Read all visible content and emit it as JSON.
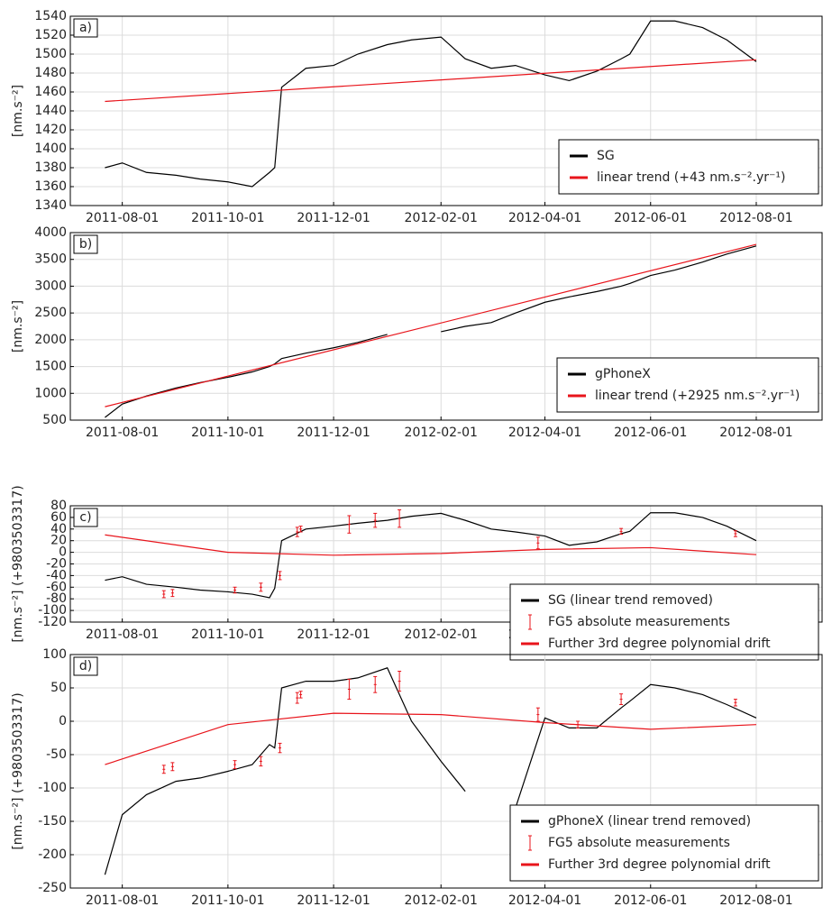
{
  "chart_data": [
    {
      "type": "line",
      "panel_label": "a)",
      "ylabel": "[nm.s⁻²]",
      "xlim": [
        "2011-07-02",
        "2012-09-08"
      ],
      "xticks": [
        "2011-08-01",
        "2011-10-01",
        "2011-12-01",
        "2012-02-01",
        "2012-04-01",
        "2012-06-01",
        "2012-08-01"
      ],
      "ylim": [
        1340,
        1540
      ],
      "yticks": [
        1340,
        1360,
        1380,
        1400,
        1420,
        1440,
        1460,
        1480,
        1500,
        1520,
        1540
      ],
      "grid": true,
      "legend": "lower right",
      "x": [
        "2011-07-22",
        "2011-08-01",
        "2011-08-15",
        "2011-09-01",
        "2011-09-15",
        "2011-10-01",
        "2011-10-15",
        "2011-10-25",
        "2011-10-28",
        "2011-11-01",
        "2011-11-15",
        "2011-12-01",
        "2011-12-15",
        "2012-01-01",
        "2012-01-15",
        "2012-02-01",
        "2012-02-15",
        "2012-03-01",
        "2012-03-15",
        "2012-04-01",
        "2012-04-15",
        "2012-05-01",
        "2012-05-15",
        "2012-05-20",
        "2012-06-01",
        "2012-06-15",
        "2012-07-01",
        "2012-07-15",
        "2012-08-01"
      ],
      "series": [
        {
          "name": "SG",
          "color": "#000000",
          "values": [
            1380,
            1385,
            1375,
            1372,
            1368,
            1365,
            1360,
            1375,
            1380,
            1465,
            1485,
            1488,
            1500,
            1510,
            1515,
            1518,
            1495,
            1485,
            1488,
            1478,
            1472,
            1482,
            1495,
            1500,
            1535,
            1535,
            1528,
            1515,
            1492
          ]
        },
        {
          "name": "linear trend (+43 nm.s⁻².yr⁻¹)",
          "color": "#e8141b",
          "x": [
            "2011-07-22",
            "2012-08-01"
          ],
          "values": [
            1450,
            1494
          ]
        }
      ]
    },
    {
      "type": "line",
      "panel_label": "b)",
      "ylabel": "[nm.s⁻²]",
      "xlim": [
        "2011-07-02",
        "2012-09-08"
      ],
      "xticks": [
        "2011-08-01",
        "2011-10-01",
        "2011-12-01",
        "2012-02-01",
        "2012-04-01",
        "2012-06-01",
        "2012-08-01"
      ],
      "ylim": [
        500,
        4000
      ],
      "yticks": [
        500,
        1000,
        1500,
        2000,
        2500,
        3000,
        3500,
        4000
      ],
      "grid": true,
      "legend": "lower right",
      "x": [
        "2011-07-22",
        "2011-08-01",
        "2011-08-15",
        "2011-09-01",
        "2011-09-15",
        "2011-10-01",
        "2011-10-15",
        "2011-10-25",
        "2011-10-28",
        "2011-11-01",
        "2011-11-15",
        "2011-12-01",
        "2011-12-15",
        "2012-01-01",
        "2012-01-15",
        "2012-02-01",
        "2012-02-15",
        "2012-03-01",
        "2012-03-15",
        "2012-04-01",
        "2012-04-15",
        "2012-05-01",
        "2012-05-15",
        "2012-05-20",
        "2012-06-01",
        "2012-06-15",
        "2012-07-01",
        "2012-07-15",
        "2012-08-01"
      ],
      "series": [
        {
          "name": "gPhoneX",
          "color": "#000000",
          "values": [
            550,
            800,
            950,
            1100,
            1200,
            1300,
            1400,
            1500,
            1550,
            1650,
            1750,
            1850,
            1950,
            2100,
            null,
            2150,
            2250,
            2320,
            2500,
            2700,
            2800,
            2900,
            3000,
            3050,
            3200,
            3300,
            3450,
            3600,
            3750
          ]
        },
        {
          "name": "linear trend (+2925 nm.s⁻².yr⁻¹)",
          "color": "#e8141b",
          "x": [
            "2011-07-22",
            "2012-08-01"
          ],
          "values": [
            750,
            3780
          ]
        }
      ]
    },
    {
      "type": "line",
      "panel_label": "c)",
      "ylabel": "[nm.s⁻²]  (+9803503317)",
      "xlim": [
        "2011-07-02",
        "2012-09-08"
      ],
      "xticks": [
        "2011-08-01",
        "2011-10-01",
        "2011-12-01",
        "2012-02-01",
        "2012-04-01",
        "2012-06-01",
        "2012-08-01"
      ],
      "ylim": [
        -120,
        80
      ],
      "yticks": [
        -120,
        -100,
        -80,
        -60,
        -40,
        -20,
        0,
        20,
        40,
        60,
        80
      ],
      "grid": true,
      "legend": "lower right",
      "x": [
        "2011-07-22",
        "2011-08-01",
        "2011-08-15",
        "2011-09-01",
        "2011-09-15",
        "2011-10-01",
        "2011-10-15",
        "2011-10-25",
        "2011-10-28",
        "2011-11-01",
        "2011-11-15",
        "2011-12-01",
        "2011-12-15",
        "2012-01-01",
        "2012-01-15",
        "2012-02-01",
        "2012-02-15",
        "2012-03-01",
        "2012-03-15",
        "2012-04-01",
        "2012-04-15",
        "2012-05-01",
        "2012-05-15",
        "2012-05-20",
        "2012-06-01",
        "2012-06-15",
        "2012-07-01",
        "2012-07-15",
        "2012-08-01"
      ],
      "series": [
        {
          "name": "SG (linear trend removed)",
          "color": "#000000",
          "values": [
            -48,
            -42,
            -55,
            -60,
            -65,
            -68,
            -72,
            -78,
            -62,
            20,
            40,
            45,
            50,
            55,
            62,
            67,
            55,
            40,
            35,
            28,
            12,
            18,
            32,
            36,
            68,
            68,
            60,
            45,
            20
          ]
        },
        {
          "name": "FG5 absolute measurements",
          "color": "#e8141b",
          "x": [
            "2011-08-25",
            "2011-08-30",
            "2011-10-05",
            "2011-10-20",
            "2011-10-31",
            "2011-11-10",
            "2011-11-12",
            "2011-12-10",
            "2011-12-25",
            "2012-01-08",
            "2012-03-28",
            "2012-05-15",
            "2012-07-20"
          ],
          "values": [
            -72,
            -70,
            -65,
            -60,
            -40,
            35,
            40,
            48,
            55,
            58,
            16,
            36,
            32
          ],
          "errors": [
            6,
            6,
            5,
            7,
            7,
            8,
            5,
            15,
            12,
            15,
            10,
            5,
            5
          ]
        },
        {
          "name": "Further 3rd degree polynomial drift",
          "color": "#e8141b",
          "x": [
            "2011-07-22",
            "2011-10-01",
            "2011-12-01",
            "2012-02-01",
            "2012-04-01",
            "2012-06-01",
            "2012-08-01"
          ],
          "values": [
            30,
            0,
            -5,
            -2,
            5,
            8,
            -4
          ]
        }
      ]
    },
    {
      "type": "line",
      "panel_label": "d)",
      "ylabel": "[nm.s⁻²]  (+9803503317)",
      "xlim": [
        "2011-07-02",
        "2012-09-08"
      ],
      "xticks": [
        "2011-08-01",
        "2011-10-01",
        "2011-12-01",
        "2012-02-01",
        "2012-04-01",
        "2012-06-01",
        "2012-08-01"
      ],
      "ylim": [
        -250,
        100
      ],
      "yticks": [
        -250,
        -200,
        -150,
        -100,
        -50,
        0,
        50,
        100
      ],
      "grid": true,
      "legend": "lower right",
      "x": [
        "2011-07-22",
        "2011-08-01",
        "2011-08-15",
        "2011-09-01",
        "2011-09-15",
        "2011-10-01",
        "2011-10-15",
        "2011-10-25",
        "2011-10-28",
        "2011-11-01",
        "2011-11-15",
        "2011-12-01",
        "2011-12-15",
        "2012-01-01",
        "2012-01-15",
        "2012-02-01",
        "2012-02-15",
        "2012-03-01",
        "2012-03-15",
        "2012-04-01",
        "2012-04-15",
        "2012-05-01",
        "2012-05-15",
        "2012-05-20",
        "2012-06-01",
        "2012-06-15",
        "2012-07-01",
        "2012-07-15",
        "2012-08-01"
      ],
      "series": [
        {
          "name": "gPhoneX (linear trend removed)",
          "color": "#000000",
          "values": [
            -230,
            -140,
            -110,
            -90,
            -85,
            -75,
            -65,
            -35,
            -40,
            50,
            60,
            60,
            65,
            80,
            0,
            -60,
            -105,
            null,
            -130,
            5,
            -10,
            -10,
            20,
            30,
            55,
            50,
            40,
            25,
            5
          ]
        },
        {
          "name": "FG5 absolute measurements",
          "color": "#e8141b",
          "x": [
            "2011-08-25",
            "2011-08-30",
            "2011-10-05",
            "2011-10-20",
            "2011-10-31",
            "2011-11-10",
            "2011-11-12",
            "2011-12-10",
            "2011-12-25",
            "2012-01-08",
            "2012-03-28",
            "2012-04-20",
            "2012-05-15",
            "2012-07-20"
          ],
          "values": [
            -72,
            -68,
            -65,
            -60,
            -40,
            35,
            40,
            48,
            55,
            60,
            10,
            -5,
            33,
            28
          ],
          "errors": [
            6,
            6,
            6,
            7,
            7,
            8,
            5,
            15,
            12,
            15,
            10,
            5,
            8,
            5
          ]
        },
        {
          "name": "Further 3rd degree polynomial drift",
          "color": "#e8141b",
          "x": [
            "2011-07-22",
            "2011-10-01",
            "2011-12-01",
            "2012-02-01",
            "2012-04-01",
            "2012-06-01",
            "2012-08-01"
          ],
          "values": [
            -65,
            -5,
            12,
            10,
            -2,
            -12,
            -5
          ]
        }
      ]
    }
  ]
}
